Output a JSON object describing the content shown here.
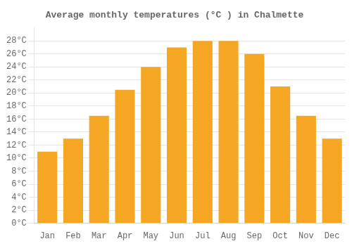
{
  "chart_data": {
    "type": "bar",
    "title": "Average monthly temperatures (°C ) in Chalmette",
    "categories": [
      "Jan",
      "Feb",
      "Mar",
      "Apr",
      "May",
      "Jun",
      "Jul",
      "Aug",
      "Sep",
      "Oct",
      "Nov",
      "Dec"
    ],
    "values": [
      11,
      13,
      16.5,
      20.5,
      24,
      27,
      28,
      28,
      26,
      21,
      16.5,
      13
    ],
    "color": "#F5A623",
    "ylim": [
      0,
      30
    ],
    "yticks": [
      {
        "value": 0,
        "label": "0°C"
      },
      {
        "value": 2,
        "label": "2°C"
      },
      {
        "value": 4,
        "label": "4°C"
      },
      {
        "value": 6,
        "label": "6°C"
      },
      {
        "value": 8,
        "label": "8°C"
      },
      {
        "value": 10,
        "label": "10°C"
      },
      {
        "value": 12,
        "label": "12°C"
      },
      {
        "value": 14,
        "label": "14°C"
      },
      {
        "value": 16,
        "label": "16°C"
      },
      {
        "value": 18,
        "label": "18°C"
      },
      {
        "value": 20,
        "label": "20°C"
      },
      {
        "value": 22,
        "label": "22°C"
      },
      {
        "value": 24,
        "label": "24°C"
      },
      {
        "value": 26,
        "label": "26°C"
      },
      {
        "value": 28,
        "label": "28°C"
      }
    ],
    "grid": true
  }
}
